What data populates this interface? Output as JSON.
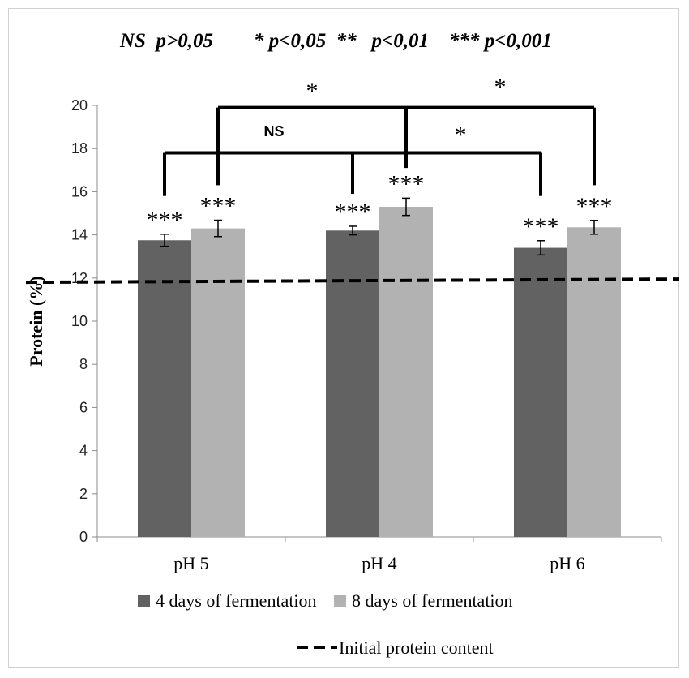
{
  "header": {
    "legend_text": "NS  p>0,05        * p<0,05  **   p<0,01    *** p<0,001"
  },
  "chart_data": {
    "type": "bar",
    "ylabel": "Protein (%)",
    "xlabel": "",
    "ylim": [
      0,
      20
    ],
    "yticks": [
      "0",
      "2",
      "4",
      "6",
      "8",
      "10",
      "12",
      "14",
      "16",
      "18",
      "20"
    ],
    "categories": [
      "pH 5",
      "pH 4",
      "pH 6"
    ],
    "series": [
      {
        "name": "4 days of fermentation",
        "color": "#626262",
        "values": [
          13.75,
          14.2,
          13.4
        ],
        "errors": [
          0.28,
          0.2,
          0.33
        ]
      },
      {
        "name": "8 days of fermentation",
        "color": "#b2b2b2",
        "values": [
          14.3,
          15.3,
          14.35
        ],
        "errors": [
          0.38,
          0.4,
          0.32
        ]
      }
    ],
    "bar_labels": [
      "***",
      "***",
      "***",
      "***",
      "***",
      "***"
    ],
    "reference_line": {
      "name": "Initial protein content",
      "value_start": 11.8,
      "value_end": 11.95,
      "style": "dashed"
    },
    "comparisons": [
      {
        "label": "NS",
        "between": [
          "4 days of fermentation pH 5",
          "4 days of fermentation pH 4"
        ]
      },
      {
        "label": "*",
        "between": [
          "4 days of fermentation pH 4",
          "4 days of fermentation pH 6"
        ]
      },
      {
        "label": "*",
        "between": [
          "8 days of fermentation pH 5",
          "8 days of fermentation pH 4"
        ]
      },
      {
        "label": "*",
        "between": [
          "8 days of fermentation pH 4",
          "8 days of fermentation pH 6"
        ]
      }
    ],
    "legend_position": "bottom",
    "grid": false
  }
}
